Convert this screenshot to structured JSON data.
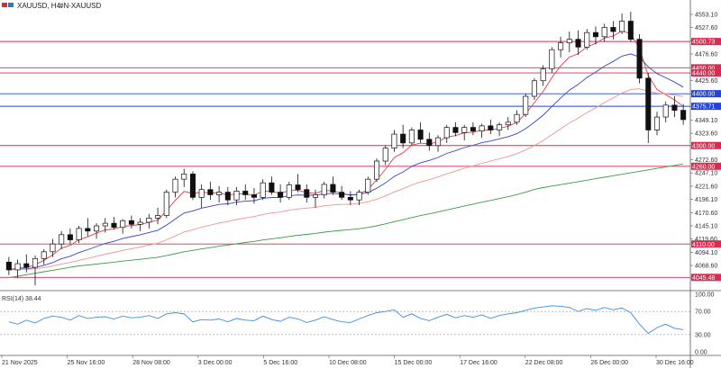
{
  "header": {
    "symbol": "XAUUSD, H4:",
    "description": "#N-XAUUSD"
  },
  "indicator": {
    "label": "RSI(14) 38.44",
    "levels": [
      100.0,
      70.0,
      30.0,
      0.0
    ],
    "level_labels": [
      "100.00",
      "70.00",
      "30.00",
      "0.00"
    ]
  },
  "chart_data": {
    "type": "candlestick",
    "timeframe": "H4",
    "y_range": [
      4020,
      4560
    ],
    "y_ticks": [
      "4553.10",
      "4527.60",
      "4502.10",
      "4476.60",
      "4425.60",
      "4400.10",
      "4374.60",
      "4349.10",
      "4323.60",
      "4298.10",
      "4272.60",
      "4247.10",
      "4221.60",
      "4196.10",
      "4170.60",
      "4145.10",
      "4119.60",
      "4094.10",
      "4068.60",
      "4043.10"
    ],
    "x_labels": [
      "21 Nov 2025",
      "25 Nov 16:00",
      "28 Nov 08:00",
      "3 Dec 00:00",
      "5 Dec 16:00",
      "10 Dec 08:00",
      "15 Dec 00:00",
      "17 Dec 16:00",
      "22 Dec 08:00",
      "26 Dec 00:00",
      "30 Dec 16:00"
    ],
    "horizontal_levels": [
      {
        "label": "4500.73",
        "value": 4500.73,
        "color": "#e0294f"
      },
      {
        "label": "4450.00",
        "value": 4450.0,
        "color": "#e0294f"
      },
      {
        "label": "4440.00",
        "value": 4440.0,
        "color": "#e0294f"
      },
      {
        "label": "4400.00",
        "value": 4400.0,
        "color": "#2244dd"
      },
      {
        "label": "4375.71",
        "value": 4375.71,
        "color": "#2244dd"
      },
      {
        "label": "4300.00",
        "value": 4300.0,
        "color": "#e0294f"
      },
      {
        "label": "4260.00",
        "value": 4260.0,
        "color": "#e0294f"
      },
      {
        "label": "4110.00",
        "value": 4110.0,
        "color": "#e0294f"
      },
      {
        "label": "4045.48",
        "value": 4045.48,
        "color": "#e0294f"
      }
    ],
    "candles": [
      [
        4075,
        4085,
        4050,
        4060
      ],
      [
        4060,
        4080,
        4045,
        4072
      ],
      [
        4072,
        4090,
        4055,
        4065
      ],
      [
        4065,
        4088,
        4030,
        4082
      ],
      [
        4082,
        4100,
        4070,
        4095
      ],
      [
        4095,
        4120,
        4085,
        4110
      ],
      [
        4110,
        4135,
        4100,
        4128
      ],
      [
        4128,
        4140,
        4110,
        4118
      ],
      [
        4118,
        4145,
        4112,
        4140
      ],
      [
        4140,
        4160,
        4125,
        4135
      ],
      [
        4135,
        4150,
        4120,
        4145
      ],
      [
        4145,
        4160,
        4132,
        4150
      ],
      [
        4150,
        4162,
        4138,
        4142
      ],
      [
        4142,
        4158,
        4130,
        4155
      ],
      [
        4155,
        4165,
        4140,
        4148
      ],
      [
        4148,
        4160,
        4135,
        4152
      ],
      [
        4152,
        4168,
        4140,
        4160
      ],
      [
        4160,
        4180,
        4148,
        4165
      ],
      [
        4165,
        4215,
        4160,
        4210
      ],
      [
        4210,
        4240,
        4200,
        4235
      ],
      [
        4235,
        4255,
        4220,
        4245
      ],
      [
        4245,
        4250,
        4195,
        4200
      ],
      [
        4200,
        4225,
        4180,
        4215
      ],
      [
        4215,
        4230,
        4195,
        4205
      ],
      [
        4205,
        4222,
        4190,
        4210
      ],
      [
        4210,
        4220,
        4185,
        4195
      ],
      [
        4195,
        4220,
        4185,
        4212
      ],
      [
        4212,
        4225,
        4195,
        4205
      ],
      [
        4205,
        4218,
        4188,
        4200
      ],
      [
        4200,
        4235,
        4195,
        4228
      ],
      [
        4228,
        4240,
        4205,
        4210
      ],
      [
        4210,
        4225,
        4190,
        4200
      ],
      [
        4200,
        4230,
        4195,
        4224
      ],
      [
        4224,
        4245,
        4210,
        4215
      ],
      [
        4215,
        4225,
        4190,
        4200
      ],
      [
        4200,
        4215,
        4180,
        4205
      ],
      [
        4205,
        4230,
        4198,
        4225
      ],
      [
        4225,
        4240,
        4205,
        4210
      ],
      [
        4210,
        4222,
        4195,
        4200
      ],
      [
        4200,
        4212,
        4185,
        4195
      ],
      [
        4195,
        4215,
        4185,
        4210
      ],
      [
        4210,
        4240,
        4205,
        4235
      ],
      [
        4235,
        4275,
        4230,
        4270
      ],
      [
        4270,
        4300,
        4262,
        4295
      ],
      [
        4295,
        4330,
        4288,
        4322
      ],
      [
        4322,
        4340,
        4295,
        4305
      ],
      [
        4305,
        4335,
        4300,
        4330
      ],
      [
        4330,
        4345,
        4305,
        4312
      ],
      [
        4312,
        4325,
        4290,
        4300
      ],
      [
        4300,
        4320,
        4288,
        4315
      ],
      [
        4315,
        4340,
        4305,
        4335
      ],
      [
        4335,
        4345,
        4318,
        4325
      ],
      [
        4325,
        4340,
        4310,
        4335
      ],
      [
        4335,
        4345,
        4320,
        4328
      ],
      [
        4328,
        4342,
        4315,
        4338
      ],
      [
        4338,
        4350,
        4322,
        4330
      ],
      [
        4330,
        4345,
        4318,
        4340
      ],
      [
        4340,
        4355,
        4330,
        4345
      ],
      [
        4345,
        4368,
        4340,
        4360
      ],
      [
        4360,
        4400,
        4355,
        4395
      ],
      [
        4395,
        4430,
        4388,
        4425
      ],
      [
        4425,
        4455,
        4415,
        4448
      ],
      [
        4448,
        4490,
        4440,
        4485
      ],
      [
        4485,
        4510,
        4470,
        4498
      ],
      [
        4498,
        4520,
        4480,
        4505
      ],
      [
        4505,
        4522,
        4475,
        4490
      ],
      [
        4490,
        4525,
        4485,
        4518
      ],
      [
        4518,
        4530,
        4495,
        4510
      ],
      [
        4510,
        4535,
        4500,
        4528
      ],
      [
        4528,
        4540,
        4505,
        4520
      ],
      [
        4520,
        4555,
        4515,
        4540
      ],
      [
        4540,
        4558,
        4500,
        4505
      ],
      [
        4505,
        4515,
        4420,
        4430
      ],
      [
        4430,
        4440,
        4305,
        4330
      ],
      [
        4330,
        4365,
        4320,
        4355
      ],
      [
        4355,
        4385,
        4345,
        4378
      ],
      [
        4378,
        4395,
        4355,
        4368
      ],
      [
        4368,
        4380,
        4340,
        4350
      ]
    ],
    "rsi_values": [
      52,
      48,
      55,
      50,
      58,
      62,
      60,
      55,
      63,
      58,
      60,
      61,
      57,
      62,
      59,
      60,
      63,
      58,
      66,
      68,
      66,
      52,
      56,
      55,
      57,
      52,
      58,
      55,
      54,
      62,
      56,
      53,
      60,
      57,
      51,
      55,
      61,
      56,
      52,
      51,
      57,
      63,
      68,
      70,
      73,
      60,
      66,
      58,
      54,
      60,
      65,
      59,
      63,
      60,
      64,
      58,
      63,
      66,
      68,
      72,
      76,
      78,
      80,
      79,
      77,
      70,
      75,
      72,
      77,
      73,
      76,
      68,
      48,
      32,
      42,
      48,
      41,
      38.44
    ],
    "moving_averages": [
      {
        "color": "#e23c4a"
      },
      {
        "color": "#3545c4"
      },
      {
        "color": "#f0948e"
      },
      {
        "color": "#3c9a4a"
      }
    ]
  }
}
